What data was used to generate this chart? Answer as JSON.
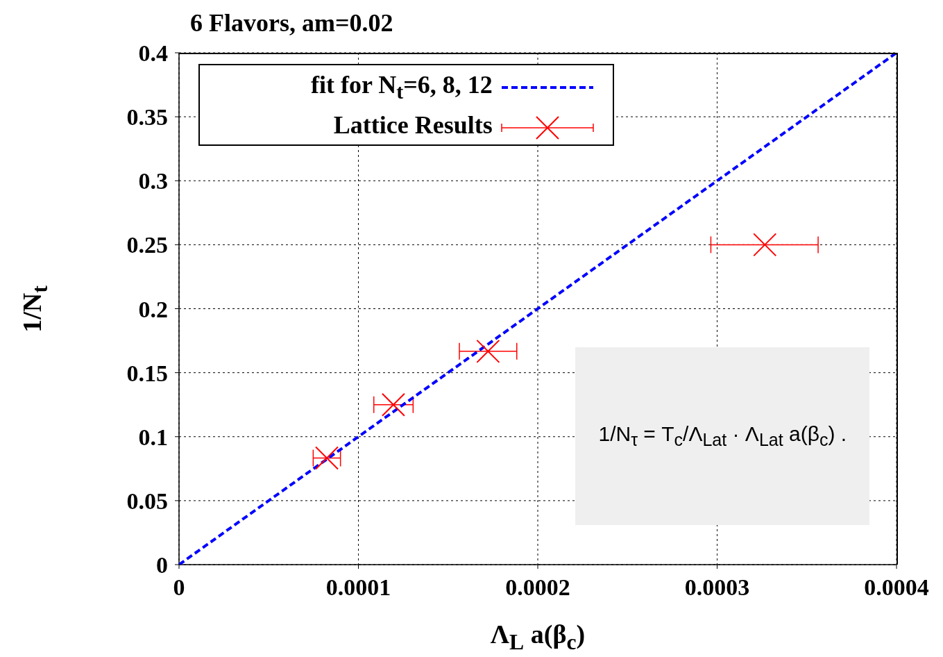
{
  "chart_data": {
    "type": "scatter",
    "title": "6 Flavors, am=0.02",
    "xlabel": "Λ$_{L}$ a(β$_{c}$)",
    "ylabel": "1/N$_{t}$",
    "annotations": [
      "1/N$_{τ}$ = T$_{c}$/Λ$_{Lat}$ · Λ$_{Lat}$ a(β$_{c}$) ."
    ],
    "series": [
      {
        "name": "fit for N$_{t}$=6, 8, 12",
        "type": "line",
        "color": "#0000ff",
        "line_style": "dashed",
        "marker": "none",
        "x": [
          0,
          0.0004
        ],
        "values": [
          0,
          0.4
        ]
      },
      {
        "name": "Lattice Results",
        "color": "#ff0000",
        "marker": "cross",
        "x": [
          8.24e-05,
          0.0001195,
          0.0001723,
          0.0003266
        ],
        "values": [
          0.0833,
          0.125,
          0.1667,
          0.25
        ],
        "xerrors": [
          [
            7.48e-05,
            9e-05
          ],
          [
            0.0001086,
            0.0001305
          ],
          [
            0.0001563,
            0.0001883
          ],
          [
            0.0002965,
            0.0003563
          ]
        ]
      }
    ],
    "xlim": [
      0,
      0.0004
    ],
    "xticks": [
      0,
      0.0001,
      0.0002,
      0.0003,
      0.0004
    ],
    "ylim": [
      0,
      0.4
    ],
    "yticks": [
      0,
      0.05,
      0.1,
      0.15,
      0.2,
      0.25,
      0.3,
      0.35,
      0.4
    ],
    "grid": true,
    "legend": "top left"
  }
}
